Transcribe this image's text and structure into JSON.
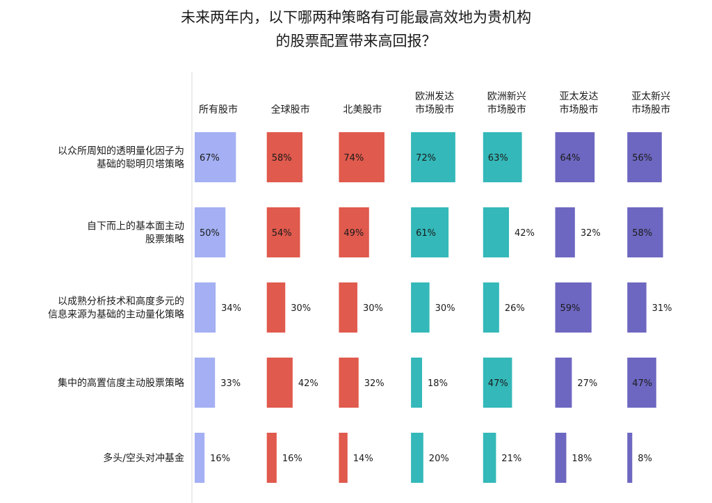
{
  "title": {
    "line1": "未来两年内，以下哪两种策略有可能最高效地为贵机构",
    "line2": "的股票配置带来高回报？"
  },
  "chart_data": {
    "type": "bar",
    "title": "未来两年内，以下哪两种策略有可能最高效地为贵机构的股票配置带来高回报？",
    "unit": "%",
    "columns": [
      {
        "label": [
          "所有股市"
        ],
        "color": "#a4b0f3"
      },
      {
        "label": [
          "全球股市"
        ],
        "color": "#e05a4d"
      },
      {
        "label": [
          "北美股市"
        ],
        "color": "#e05a4d"
      },
      {
        "label": [
          "欧洲发达",
          "市场股市"
        ],
        "color": "#34b8b9"
      },
      {
        "label": [
          "欧洲新兴",
          "市场股市"
        ],
        "color": "#34b8b9"
      },
      {
        "label": [
          "亚太发达",
          "市场股市"
        ],
        "color": "#6d67c1"
      },
      {
        "label": [
          "亚太新兴",
          "市场股市"
        ],
        "color": "#6d67c1"
      }
    ],
    "rows": [
      {
        "label": [
          "以众所周知的透明量化因子为",
          "基础的聪明贝塔策略"
        ],
        "values": [
          67,
          58,
          74,
          72,
          63,
          64,
          56
        ]
      },
      {
        "label": [
          "自下而上的基本面主动",
          "股票策略"
        ],
        "values": [
          50,
          54,
          49,
          61,
          42,
          32,
          58
        ]
      },
      {
        "label": [
          "以成熟分析技术和高度多元的",
          "信息来源为基础的主动量化策略"
        ],
        "values": [
          34,
          30,
          30,
          30,
          26,
          59,
          31
        ]
      },
      {
        "label": [
          "集中的高置信度主动股票策略"
        ],
        "values": [
          33,
          42,
          32,
          18,
          47,
          27,
          47
        ]
      },
      {
        "label": [
          "多头/空头对冲基金"
        ],
        "values": [
          16,
          16,
          14,
          20,
          21,
          18,
          8
        ]
      }
    ]
  }
}
